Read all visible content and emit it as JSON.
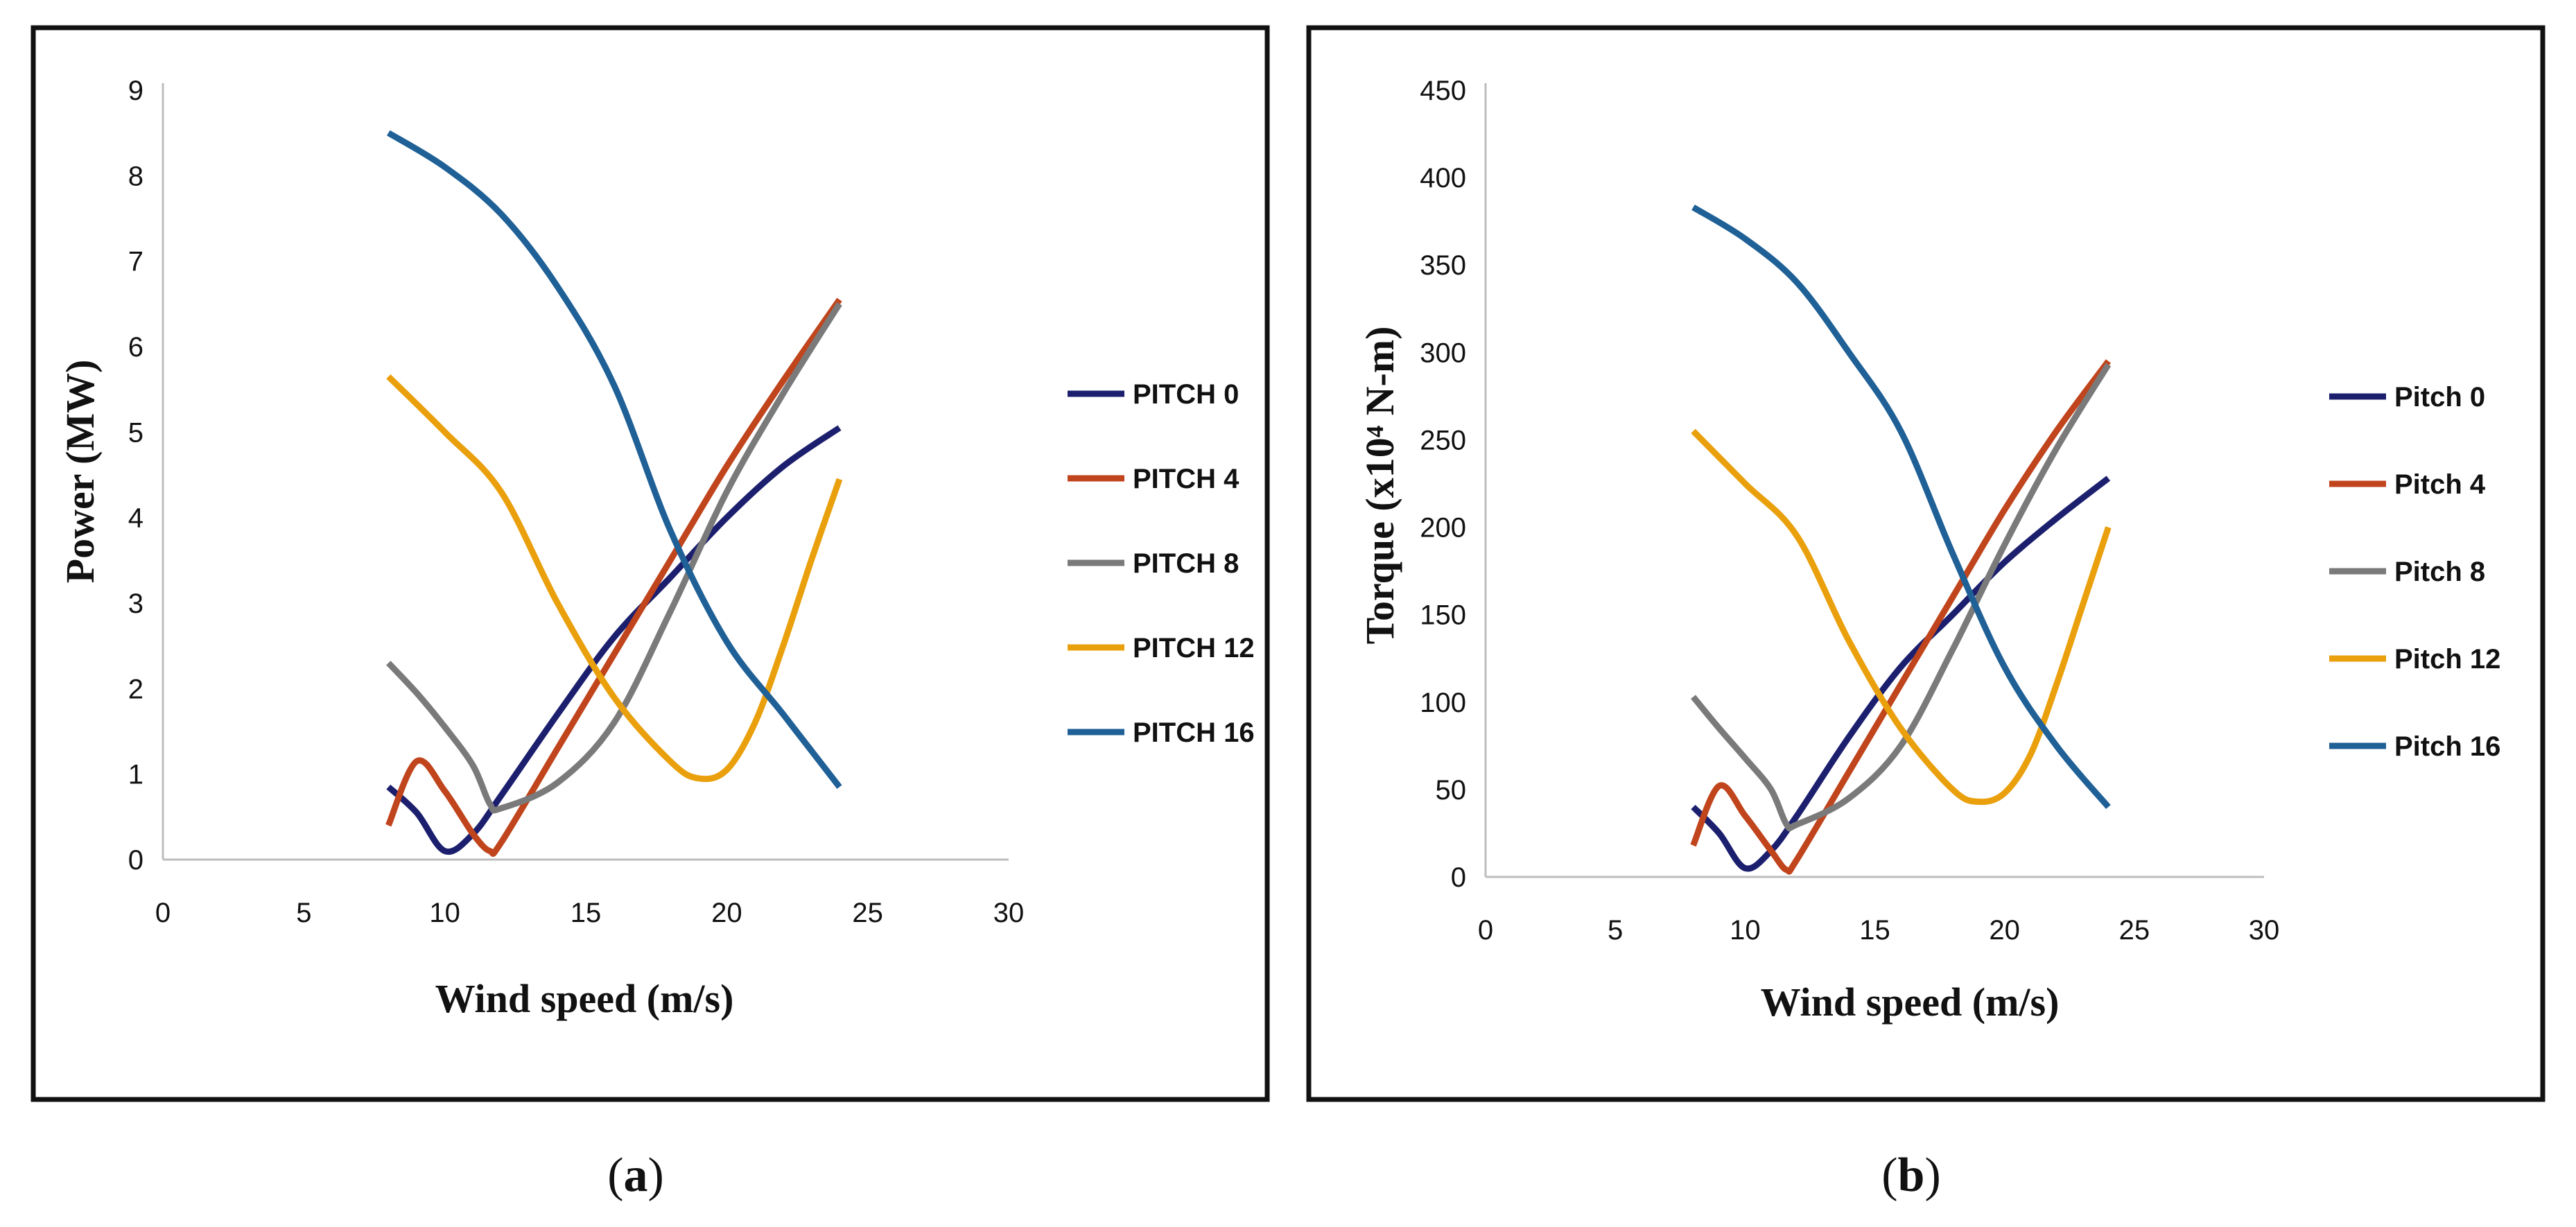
{
  "chart_data": [
    {
      "type": "line",
      "panel": "(a)",
      "caption_letter": "a",
      "xlabel": "Wind speed (m/s)",
      "ylabel": "Power (MW)",
      "xlim": [
        0,
        30
      ],
      "ylim": [
        0,
        9
      ],
      "xticks": [
        "0",
        "5",
        "10",
        "15",
        "20",
        "25",
        "30"
      ],
      "yticks": [
        "0",
        "1",
        "2",
        "3",
        "4",
        "5",
        "6",
        "7",
        "8",
        "9"
      ],
      "legend_position": "right",
      "series": [
        {
          "name": "PITCH 0",
          "color": "#1b1f6e",
          "x": [
            8,
            9,
            10,
            11,
            12,
            14,
            16,
            18,
            20,
            22,
            24
          ],
          "y": [
            0.85,
            0.55,
            0.1,
            0.3,
            0.75,
            1.7,
            2.6,
            3.3,
            4.0,
            4.6,
            5.05
          ]
        },
        {
          "name": "PITCH 4",
          "color": "#c0441c",
          "x": [
            8,
            9,
            10,
            11,
            11.6,
            12,
            14,
            16,
            18,
            20,
            22,
            24
          ],
          "y": [
            0.4,
            1.15,
            0.8,
            0.3,
            0.1,
            0.2,
            1.3,
            2.4,
            3.5,
            4.6,
            5.6,
            6.55
          ]
        },
        {
          "name": "PITCH 8",
          "color": "#7a7a7a",
          "x": [
            8,
            9,
            10,
            11,
            11.6,
            12,
            14,
            16,
            18,
            20,
            22,
            24
          ],
          "y": [
            2.3,
            1.95,
            1.55,
            1.1,
            0.65,
            0.6,
            0.9,
            1.6,
            2.9,
            4.3,
            5.45,
            6.5
          ]
        },
        {
          "name": "PITCH 12",
          "color": "#e9a00c",
          "x": [
            8,
            10,
            12,
            14,
            16,
            18,
            19,
            20,
            21,
            22,
            23,
            24
          ],
          "y": [
            5.65,
            5.0,
            4.3,
            3.0,
            1.9,
            1.15,
            0.95,
            1.05,
            1.6,
            2.5,
            3.5,
            4.45
          ]
        },
        {
          "name": "PITCH 16",
          "color": "#1f6096",
          "x": [
            8,
            10,
            12,
            14,
            16,
            18,
            20,
            22,
            24
          ],
          "y": [
            8.5,
            8.1,
            7.55,
            6.7,
            5.55,
            3.85,
            2.55,
            1.7,
            0.85
          ]
        }
      ]
    },
    {
      "type": "line",
      "panel": "(b)",
      "caption_letter": "b",
      "xlabel": "Wind speed (m/s)",
      "ylabel": "Torque (x10⁴ N-m)",
      "xlim": [
        0,
        30
      ],
      "ylim": [
        0,
        450
      ],
      "xticks": [
        "0",
        "5",
        "10",
        "15",
        "20",
        "25",
        "30"
      ],
      "yticks": [
        "0",
        "50",
        "100",
        "150",
        "200",
        "250",
        "300",
        "350",
        "400",
        "450"
      ],
      "legend_position": "right",
      "series": [
        {
          "name": "Pitch 0",
          "color": "#1b1f6e",
          "x": [
            8,
            9,
            10,
            11,
            12,
            14,
            16,
            18,
            20,
            22,
            24
          ],
          "y": [
            40,
            25,
            5,
            15,
            35,
            80,
            120,
            150,
            180,
            205,
            228
          ]
        },
        {
          "name": "Pitch 4",
          "color": "#c0441c",
          "x": [
            8,
            9,
            10,
            11,
            11.6,
            12,
            14,
            16,
            18,
            20,
            22,
            24
          ],
          "y": [
            18,
            52,
            35,
            15,
            4,
            10,
            60,
            110,
            160,
            210,
            255,
            295
          ]
        },
        {
          "name": "Pitch 8",
          "color": "#7a7a7a",
          "x": [
            8,
            9,
            10,
            11,
            11.6,
            12,
            14,
            16,
            18,
            20,
            22,
            24
          ],
          "y": [
            103,
            85,
            68,
            50,
            30,
            30,
            45,
            75,
            130,
            190,
            245,
            293
          ]
        },
        {
          "name": "Pitch 12",
          "color": "#e9a00c",
          "x": [
            8,
            10,
            12,
            14,
            16,
            18,
            19,
            20,
            21,
            22,
            23,
            24
          ],
          "y": [
            255,
            225,
            195,
            135,
            85,
            50,
            43,
            48,
            70,
            110,
            155,
            200
          ]
        },
        {
          "name": "Pitch 16",
          "color": "#1f6096",
          "x": [
            8,
            10,
            12,
            14,
            16,
            18,
            20,
            22,
            24
          ],
          "y": [
            383,
            365,
            340,
            300,
            255,
            185,
            120,
            75,
            40
          ]
        }
      ]
    }
  ]
}
